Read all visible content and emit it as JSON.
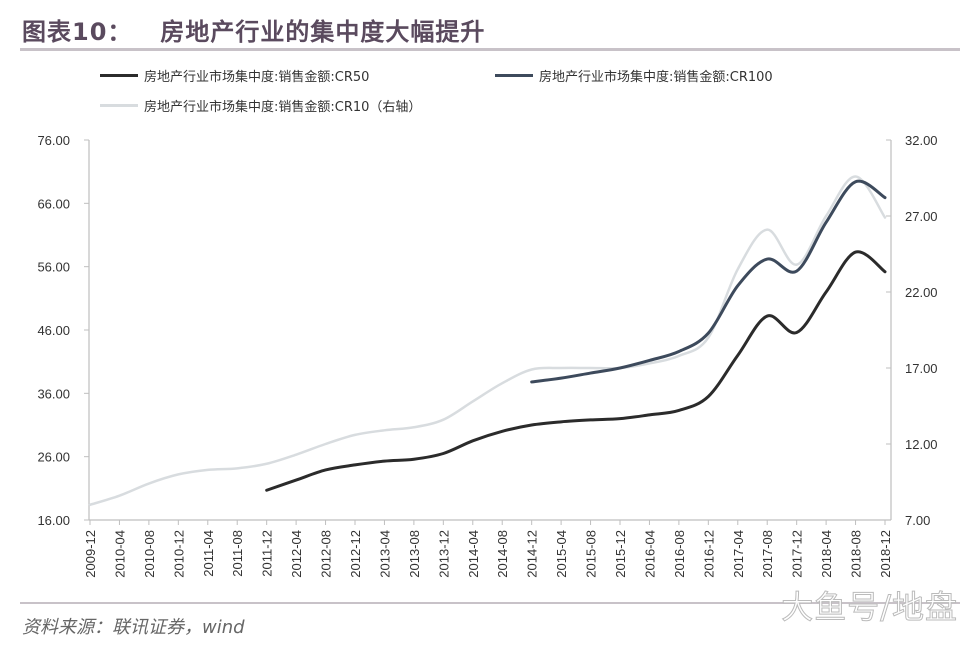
{
  "header": {
    "figure_label": "图表10：",
    "title": "房地产行业的集中度大幅提升"
  },
  "legend": [
    {
      "label": "房地产行业市场集中度:销售金额:CR50",
      "color": "#2b2b2b"
    },
    {
      "label": "房地产行业市场集中度:销售金额:CR100",
      "color": "#3d4a5c"
    },
    {
      "label": "房地产行业市场集中度:销售金额:CR10（右轴）",
      "color": "#d8dcdf"
    }
  ],
  "footer": {
    "source": "资料来源：联讯证券，wind",
    "watermark": "大鱼号/地盘"
  },
  "chart_data": {
    "type": "line",
    "title": "房地产行业的集中度大幅提升",
    "xlabel": "",
    "ylabel": "",
    "categories": [
      "2009-12",
      "2010-04",
      "2010-08",
      "2010-12",
      "2011-04",
      "2011-08",
      "2011-12",
      "2012-04",
      "2012-08",
      "2012-12",
      "2013-04",
      "2013-08",
      "2013-12",
      "2014-04",
      "2014-08",
      "2014-12",
      "2015-04",
      "2015-08",
      "2015-12",
      "2016-04",
      "2016-08",
      "2016-12",
      "2017-04",
      "2017-08",
      "2017-12",
      "2018-04",
      "2018-08",
      "2018-12"
    ],
    "left_axis": {
      "ylim": [
        16,
        76
      ],
      "ticks": [
        "16.00",
        "26.00",
        "36.00",
        "46.00",
        "56.00",
        "66.00",
        "76.00"
      ]
    },
    "right_axis": {
      "ylim": [
        7,
        32
      ],
      "ticks": [
        "7.00",
        "12.00",
        "17.00",
        "22.00",
        "27.00",
        "32.00"
      ]
    },
    "series": [
      {
        "name": "房地产行业市场集中度:销售金额:CR50",
        "axis": "left",
        "color": "#2b2b2b",
        "values": [
          null,
          null,
          null,
          null,
          null,
          null,
          20.7,
          22.3,
          23.9,
          24.7,
          25.3,
          25.6,
          26.5,
          28.5,
          30.0,
          31.0,
          31.5,
          31.8,
          32.0,
          32.6,
          33.3,
          35.5,
          42.0,
          48.2,
          45.6,
          52.0,
          58.3,
          55.2
        ]
      },
      {
        "name": "房地产行业市场集中度:销售金额:CR100",
        "axis": "left",
        "color": "#3d4a5c",
        "values": [
          null,
          null,
          null,
          null,
          null,
          null,
          null,
          null,
          null,
          null,
          null,
          null,
          null,
          null,
          null,
          37.8,
          38.4,
          39.2,
          40.0,
          41.2,
          42.6,
          45.5,
          53.0,
          57.2,
          55.3,
          63.0,
          69.4,
          66.9
        ]
      },
      {
        "name": "房地产行业市场集中度:销售金额:CR10（右轴）",
        "axis": "right",
        "color": "#d8dcdf",
        "values": [
          8.0,
          8.6,
          9.4,
          10.0,
          10.3,
          10.4,
          10.7,
          11.3,
          12.0,
          12.6,
          12.9,
          13.1,
          13.6,
          14.8,
          16.0,
          16.9,
          17.0,
          17.0,
          17.0,
          17.3,
          17.8,
          19.0,
          23.5,
          26.1,
          23.8,
          27.0,
          29.6,
          26.9
        ]
      }
    ],
    "grid": false,
    "legend_position": "top"
  }
}
